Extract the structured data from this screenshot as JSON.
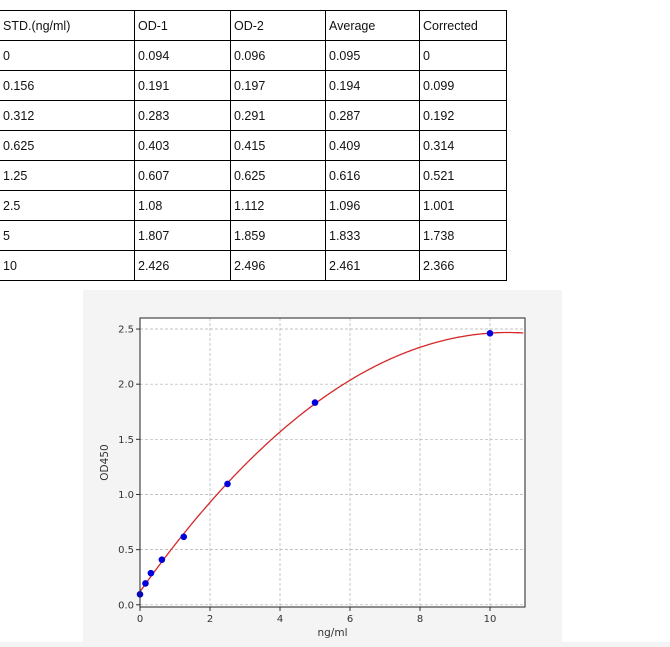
{
  "table": {
    "headers": [
      "STD.(ng/ml)",
      "OD-1",
      "OD-2",
      "Average",
      "Corrected"
    ],
    "rows": [
      [
        "0",
        "0.094",
        "0.096",
        "0.095",
        "0"
      ],
      [
        "0.156",
        "0.191",
        "0.197",
        "0.194",
        "0.099"
      ],
      [
        "0.312",
        "0.283",
        "0.291",
        "0.287",
        "0.192"
      ],
      [
        "0.625",
        "0.403",
        "0.415",
        "0.409",
        "0.314"
      ],
      [
        "1.25",
        "0.607",
        "0.625",
        "0.616",
        "0.521"
      ],
      [
        "2.5",
        "1.08",
        "1.112",
        "1.096",
        "1.001"
      ],
      [
        "5",
        "1.807",
        "1.859",
        "1.833",
        "1.738"
      ],
      [
        "10",
        "2.426",
        "2.496",
        "2.461",
        "2.366"
      ]
    ]
  },
  "chart_data": {
    "type": "scatter",
    "xlabel": "ng/ml",
    "ylabel": "OD450",
    "xlim": [
      0,
      11
    ],
    "ylim": [
      -0.02,
      2.6
    ],
    "xticks": [
      "0",
      "2",
      "4",
      "6",
      "8",
      "10"
    ],
    "yticks": [
      "0.0",
      "0.5",
      "1.0",
      "1.5",
      "2.0",
      "2.5"
    ],
    "grid": true,
    "points": {
      "x": [
        0,
        0.156,
        0.312,
        0.625,
        1.25,
        2.5,
        5,
        10
      ],
      "y": [
        0.095,
        0.194,
        0.287,
        0.409,
        0.616,
        1.096,
        1.833,
        2.461
      ]
    },
    "fit_curve": "fitted standard curve",
    "colors": {
      "points": "#0000dd",
      "curve": "#d62728",
      "grid": "#b0b0b0",
      "panel": "#f4f4f4"
    }
  }
}
